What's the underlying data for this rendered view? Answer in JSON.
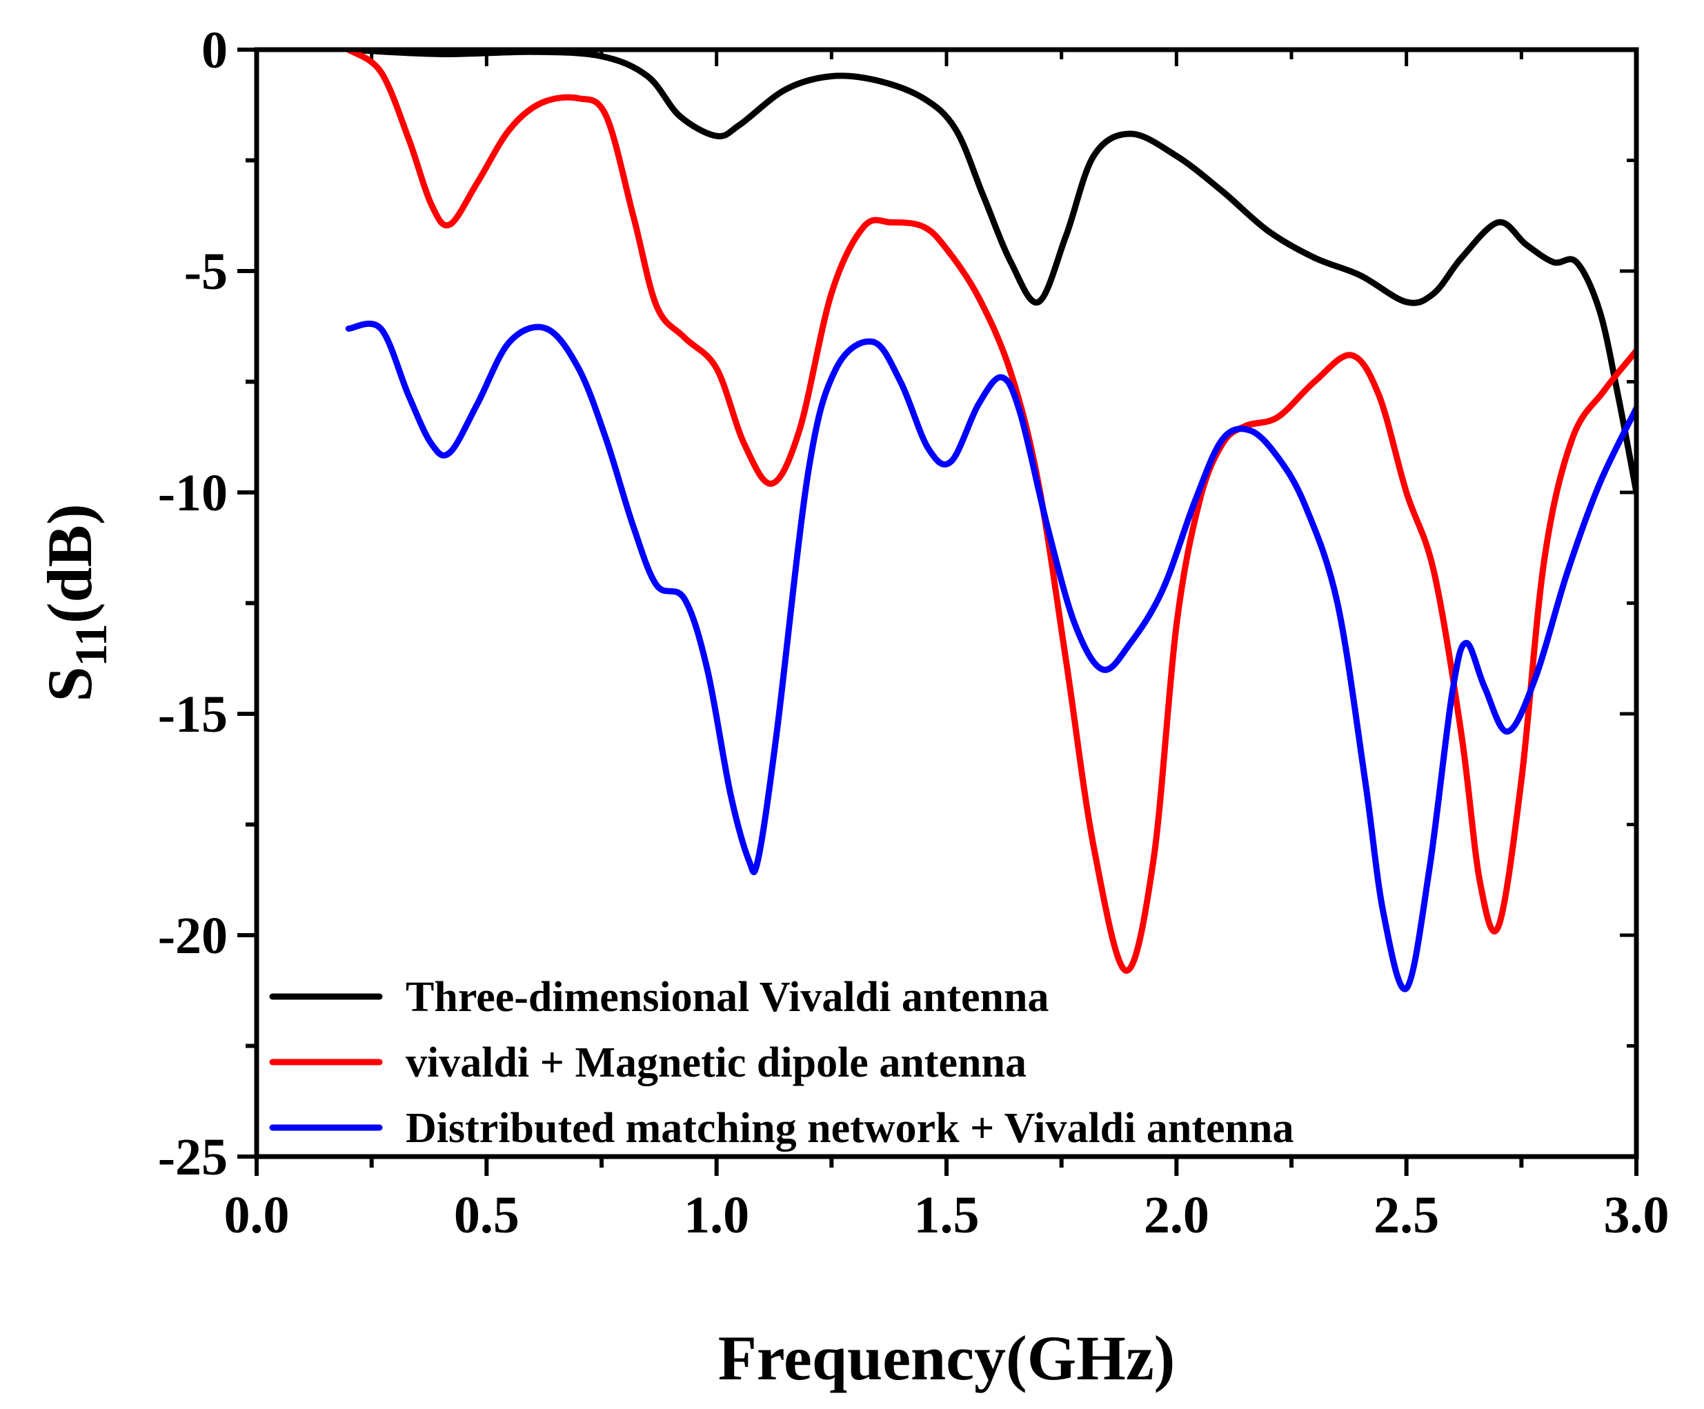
{
  "chart_data": {
    "type": "line",
    "title": "",
    "xlabel": "Frequency(GHz)",
    "ylabel_main": "S",
    "ylabel_sub": "11",
    "ylabel_rest": "(dB)",
    "xlim": [
      0.0,
      3.0
    ],
    "ylim": [
      -25,
      0
    ],
    "x_ticks": [
      "0.0",
      "0.5",
      "1.0",
      "1.5",
      "2.0",
      "2.5",
      "3.0"
    ],
    "y_ticks": [
      "0",
      "-5",
      "-10",
      "-15",
      "-20",
      "-25"
    ],
    "legend_position": "bottom-left",
    "series": [
      {
        "name": "Three-dimensional Vivaldi antenna",
        "color": "#000000",
        "x": [
          0.2,
          0.4,
          0.6,
          0.75,
          0.85,
          0.92,
          1.0,
          1.05,
          1.15,
          1.25,
          1.35,
          1.45,
          1.52,
          1.58,
          1.64,
          1.7,
          1.76,
          1.82,
          1.9,
          2.0,
          2.1,
          2.2,
          2.3,
          2.4,
          2.5,
          2.56,
          2.62,
          2.7,
          2.76,
          2.82,
          2.87,
          2.92,
          2.96,
          3.0
        ],
        "values": [
          0.0,
          -0.1,
          -0.05,
          -0.15,
          -0.6,
          -1.5,
          -1.95,
          -1.7,
          -0.9,
          -0.6,
          -0.7,
          -1.1,
          -1.8,
          -3.3,
          -4.8,
          -5.7,
          -4.2,
          -2.4,
          -1.9,
          -2.4,
          -3.2,
          -4.1,
          -4.7,
          -5.1,
          -5.7,
          -5.5,
          -4.7,
          -3.9,
          -4.4,
          -4.8,
          -4.8,
          -5.9,
          -7.8,
          -10.0
        ]
      },
      {
        "name": "vivaldi + Magnetic dipole antenna",
        "color": "#ff0000",
        "x": [
          0.2,
          0.27,
          0.33,
          0.38,
          0.42,
          0.48,
          0.55,
          0.62,
          0.7,
          0.76,
          0.82,
          0.87,
          0.93,
          1.0,
          1.06,
          1.12,
          1.18,
          1.25,
          1.32,
          1.38,
          1.45,
          1.5,
          1.57,
          1.64,
          1.7,
          1.76,
          1.82,
          1.89,
          1.95,
          2.0,
          2.05,
          2.1,
          2.15,
          2.22,
          2.3,
          2.38,
          2.44,
          2.5,
          2.56,
          2.62,
          2.66,
          2.7,
          2.75,
          2.8,
          2.86,
          2.93,
          3.0
        ],
        "values": [
          0.0,
          -0.5,
          -2.0,
          -3.5,
          -3.95,
          -3.0,
          -1.8,
          -1.2,
          -1.1,
          -1.5,
          -3.8,
          -5.8,
          -6.5,
          -7.2,
          -8.9,
          -9.8,
          -8.6,
          -5.5,
          -4.0,
          -3.9,
          -4.0,
          -4.5,
          -5.6,
          -7.3,
          -9.8,
          -13.8,
          -18.0,
          -20.8,
          -18.3,
          -13.0,
          -10.2,
          -8.9,
          -8.5,
          -8.3,
          -7.5,
          -6.9,
          -7.8,
          -10.0,
          -11.8,
          -15.5,
          -18.8,
          -19.8,
          -16.5,
          -11.5,
          -8.8,
          -7.7,
          -6.8
        ]
      },
      {
        "name": "Distributed matching network + Vivaldi antenna",
        "color": "#0000ff",
        "x": [
          0.2,
          0.27,
          0.33,
          0.38,
          0.42,
          0.48,
          0.55,
          0.63,
          0.7,
          0.76,
          0.82,
          0.87,
          0.93,
          0.98,
          1.03,
          1.07,
          1.09,
          1.13,
          1.2,
          1.26,
          1.34,
          1.4,
          1.46,
          1.51,
          1.57,
          1.62,
          1.66,
          1.72,
          1.78,
          1.84,
          1.9,
          1.97,
          2.04,
          2.1,
          2.16,
          2.22,
          2.28,
          2.35,
          2.41,
          2.45,
          2.5,
          2.55,
          2.6,
          2.63,
          2.67,
          2.72,
          2.78,
          2.85,
          2.92,
          3.0
        ],
        "values": [
          -6.3,
          -6.3,
          -7.8,
          -8.9,
          -9.1,
          -8.0,
          -6.6,
          -6.3,
          -7.2,
          -8.8,
          -10.8,
          -12.1,
          -12.4,
          -14.0,
          -16.8,
          -18.3,
          -18.3,
          -15.5,
          -9.5,
          -7.2,
          -6.6,
          -7.5,
          -9.0,
          -9.3,
          -8.0,
          -7.4,
          -8.2,
          -10.8,
          -13.0,
          -14.0,
          -13.4,
          -12.2,
          -10.2,
          -8.8,
          -8.6,
          -9.2,
          -10.3,
          -12.5,
          -16.5,
          -19.5,
          -21.2,
          -18.5,
          -14.5,
          -13.4,
          -14.4,
          -15.4,
          -14.2,
          -11.8,
          -9.8,
          -8.1
        ]
      }
    ]
  }
}
